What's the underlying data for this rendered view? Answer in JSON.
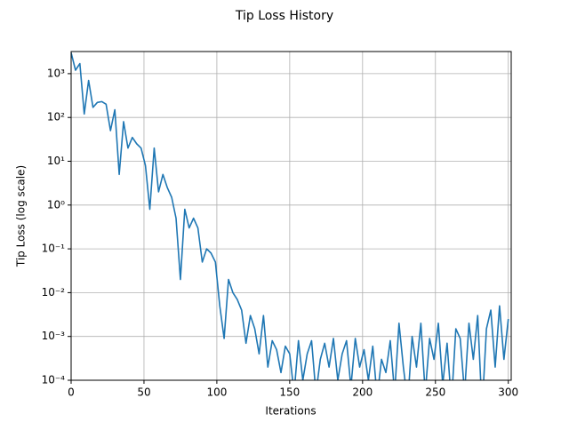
{
  "chart_data": {
    "type": "line",
    "title": "Tip Loss History",
    "xlabel": "Iterations",
    "ylabel": "Tip Loss (log scale)",
    "log_y": true,
    "grid": true,
    "xlim": [
      0,
      302
    ],
    "xticks": [
      0,
      50,
      100,
      150,
      200,
      250,
      300
    ],
    "ylim": [
      0.0001,
      3200
    ],
    "yticks": [
      {
        "value": 0.0001,
        "label": "10⁻⁴"
      },
      {
        "value": 0.001,
        "label": "10⁻³"
      },
      {
        "value": 0.01,
        "label": "10⁻²"
      },
      {
        "value": 0.1,
        "label": "10⁻¹"
      },
      {
        "value": 1,
        "label": "10⁰"
      },
      {
        "value": 10,
        "label": "10¹"
      },
      {
        "value": 100,
        "label": "10²"
      },
      {
        "value": 1000,
        "label": "10³"
      }
    ],
    "series": [
      {
        "color": "#1f77b4",
        "x": [
          0,
          3,
          6,
          9,
          12,
          15,
          18,
          21,
          24,
          27,
          30,
          33,
          36,
          39,
          42,
          45,
          48,
          51,
          54,
          57,
          60,
          63,
          66,
          69,
          72,
          75,
          78,
          81,
          84,
          87,
          90,
          93,
          96,
          99,
          102,
          105,
          108,
          111,
          114,
          117,
          120,
          123,
          126,
          129,
          132,
          135,
          138,
          141,
          144,
          147,
          150,
          153,
          156,
          159,
          162,
          165,
          168,
          171,
          174,
          177,
          180,
          183,
          186,
          189,
          192,
          195,
          198,
          201,
          204,
          207,
          210,
          213,
          216,
          219,
          222,
          225,
          228,
          231,
          234,
          237,
          240,
          243,
          246,
          249,
          252,
          255,
          258,
          261,
          264,
          267,
          270,
          273,
          276,
          279,
          282,
          285,
          288,
          291,
          294,
          297,
          300
        ],
        "values": [
          3000,
          1200,
          1700,
          120,
          700,
          170,
          220,
          230,
          200,
          50,
          150,
          5,
          80,
          20,
          35,
          25,
          20,
          8,
          0.8,
          20,
          2,
          5,
          2.5,
          1.5,
          0.5,
          0.02,
          0.8,
          0.3,
          0.5,
          0.3,
          0.05,
          0.1,
          0.08,
          0.05,
          0.005,
          0.0009,
          0.02,
          0.01,
          0.007,
          0.004,
          0.0007,
          0.003,
          0.0015,
          0.0004,
          0.003,
          0.0002,
          0.0008,
          0.0005,
          0.00015,
          0.0006,
          0.0004,
          5e-05,
          0.0008,
          0.0001,
          0.0004,
          0.0008,
          5e-05,
          0.0003,
          0.0007,
          0.0002,
          0.0009,
          0.0001,
          0.0004,
          0.0008,
          7e-05,
          0.0009,
          0.0002,
          0.0005,
          0.0001,
          0.0006,
          4e-05,
          0.0003,
          0.00015,
          0.0008,
          5e-05,
          0.002,
          0.0002,
          3e-05,
          0.001,
          0.0002,
          0.002,
          5e-05,
          0.0009,
          0.0003,
          0.002,
          8e-05,
          0.0007,
          3e-05,
          0.0015,
          0.0009,
          5e-05,
          0.002,
          0.0003,
          0.003,
          2e-05,
          0.0015,
          0.004,
          0.0002,
          0.005,
          0.0003,
          0.0025
        ]
      }
    ]
  }
}
